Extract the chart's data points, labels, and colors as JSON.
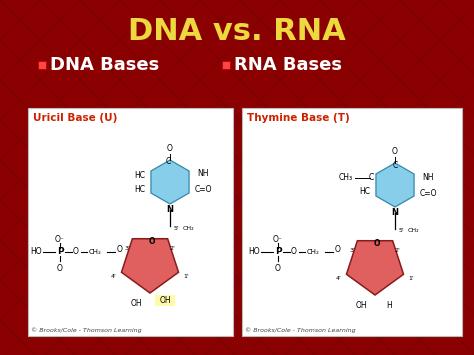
{
  "title": "DNA vs. RNA",
  "title_color": "#EED840",
  "title_fontsize": 22,
  "bg_color": "#8B0000",
  "bullet_color": "#FF4444",
  "bullet1_text": "DNA Bases",
  "bullet2_text": "RNA Bases",
  "bullet_fontsize": 13,
  "bullet_text_color": "#FFFFFF",
  "panel_bg": "#FFFFFF",
  "panel1_title": "Uricil Base (U)",
  "panel2_title": "Thymine Base (T)",
  "panel_title_color": "#CC2200",
  "panel_title_fontsize": 7.5,
  "highlight_color": "#FFFAAA",
  "sugar_color": "#E06060",
  "base_color": "#87CEEB",
  "credit_text": "© Brooks/Cole - Thomson Learning",
  "credit_fontsize": 4.5
}
